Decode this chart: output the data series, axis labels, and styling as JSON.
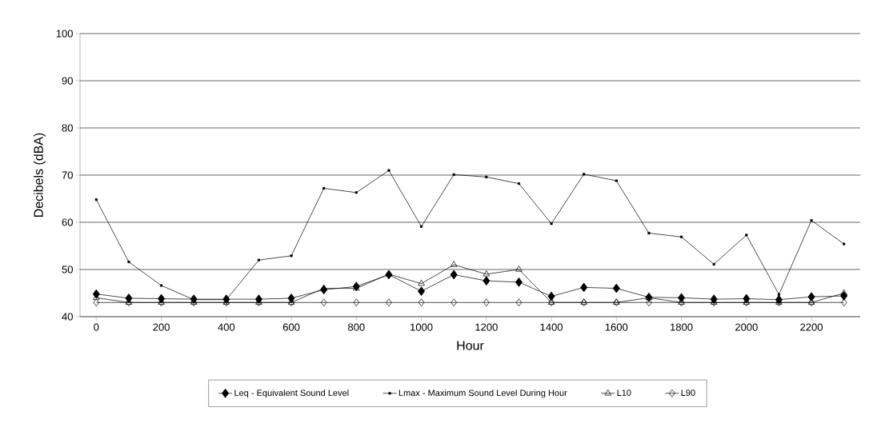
{
  "chart_data": {
    "type": "line",
    "xlabel": "Hour",
    "ylabel": "Decibels (dBA)",
    "x": [
      0,
      100,
      200,
      300,
      400,
      500,
      600,
      700,
      800,
      900,
      1000,
      1100,
      1200,
      1300,
      1400,
      1500,
      1600,
      1700,
      1800,
      1900,
      2000,
      2100,
      2200,
      2300
    ],
    "xlim": [
      -50,
      2350
    ],
    "xticks": [
      0,
      200,
      400,
      600,
      800,
      1000,
      1200,
      1400,
      1600,
      1800,
      2000,
      2200
    ],
    "ylim": [
      40,
      100
    ],
    "yticks": [
      40,
      50,
      60,
      70,
      80,
      90,
      100
    ],
    "grid": "y",
    "legend": "bottom",
    "line_style": "solid",
    "series": [
      {
        "name": "Leq - Equivalent Sound Level",
        "color": "#000000",
        "marker": "diamond",
        "values": [
          44.8,
          43.9,
          43.8,
          43.7,
          43.7,
          43.7,
          43.9,
          45.7,
          46.4,
          48.9,
          45.4,
          48.9,
          47.6,
          47.3,
          44.3,
          46.2,
          46.0,
          44.1,
          44.0,
          43.7,
          43.8,
          43.6,
          44.2,
          44.4
        ]
      },
      {
        "name": "Lmax - Maximum Sound Level During Hour",
        "color": "#000000",
        "marker": "square",
        "values": [
          64.8,
          51.6,
          46.6,
          43.6,
          43.6,
          52.0,
          52.9,
          67.2,
          66.3,
          71.0,
          59.1,
          70.1,
          69.6,
          68.2,
          59.7,
          70.2,
          68.8,
          57.7,
          56.9,
          51.1,
          57.3,
          44.7,
          60.4,
          55.4
        ]
      },
      {
        "name": "L10",
        "color": "#000000",
        "marker": "triangle",
        "values": [
          44,
          43,
          43,
          43,
          43,
          43,
          43,
          46,
          46,
          49,
          47,
          51,
          49,
          50,
          43,
          43,
          43,
          44,
          43,
          43,
          43,
          43,
          43,
          45
        ]
      },
      {
        "name": "L90",
        "color": "#000000",
        "marker": "diamond",
        "values": [
          43,
          43,
          43,
          43,
          43,
          43,
          43,
          43,
          43,
          43,
          43,
          43,
          43,
          43,
          43,
          43,
          43,
          43,
          43,
          43,
          43,
          43,
          43,
          43
        ]
      }
    ]
  }
}
